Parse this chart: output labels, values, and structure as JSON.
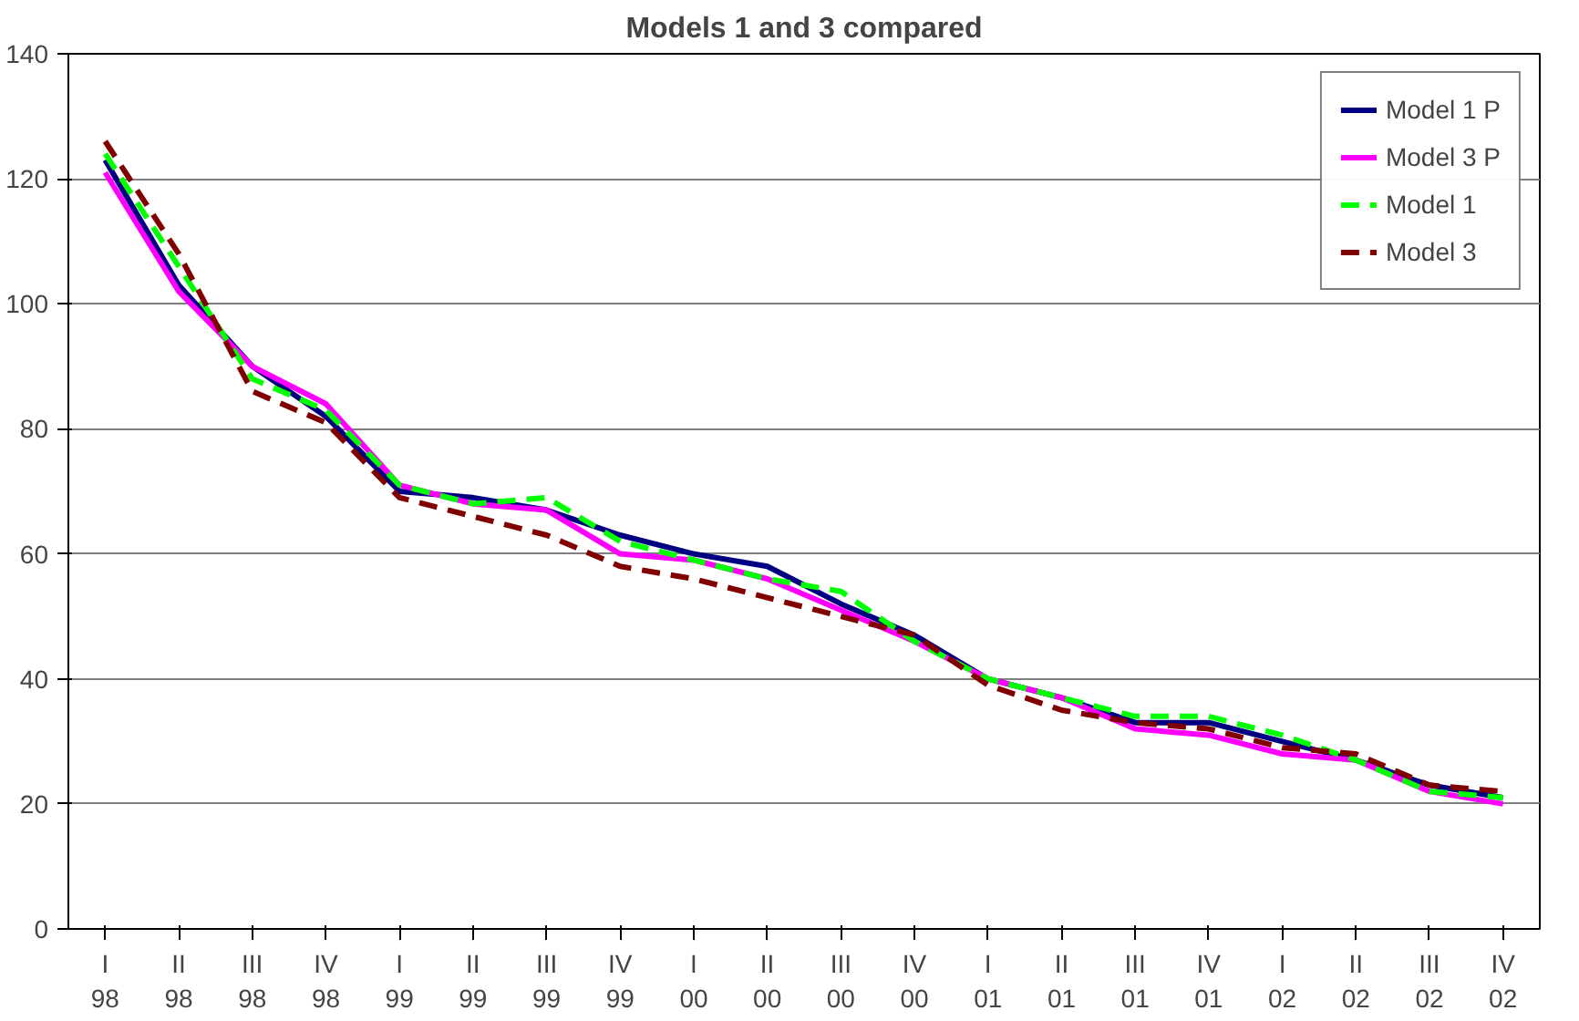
{
  "chart_data": {
    "type": "line",
    "title": "Models 1 and 3 compared",
    "categories": [
      "I\n98",
      "II\n98",
      "III\n98",
      "IV\n98",
      "I\n99",
      "II\n99",
      "III\n99",
      "IV\n99",
      "I\n00",
      "II\n00",
      "III\n00",
      "IV\n00",
      "I\n01",
      "II\n01",
      "III\n01",
      "IV\n01",
      "I\n02",
      "II\n02",
      "III\n02",
      "IV\n02"
    ],
    "series": [
      {
        "name": "Model 1 P",
        "color": "#000080",
        "line_style": "solid",
        "values": [
          123,
          103,
          90,
          82,
          70,
          69,
          67,
          63,
          60,
          58,
          52,
          47,
          40,
          37,
          33,
          33,
          30,
          27,
          23,
          21
        ]
      },
      {
        "name": "Model 3 P",
        "color": "#ff00ff",
        "line_style": "solid",
        "values": [
          121,
          102,
          90,
          84,
          71,
          68,
          67,
          60,
          59,
          56,
          51,
          46,
          40,
          37,
          32,
          31,
          28,
          27,
          22,
          20
        ]
      },
      {
        "name": "Model 1",
        "color": "#00ff00",
        "line_style": "dashed",
        "values": [
          124,
          106,
          88,
          83,
          71,
          68,
          69,
          62,
          59,
          56,
          54,
          46,
          40,
          37,
          34,
          34,
          31,
          27,
          22,
          21
        ]
      },
      {
        "name": "Model 3",
        "color": "#800000",
        "line_style": "dashed",
        "values": [
          126,
          108,
          86,
          81,
          69,
          66,
          63,
          58,
          56,
          53,
          50,
          47,
          39,
          35,
          33,
          32,
          29,
          28,
          23,
          22
        ]
      }
    ],
    "ylim": [
      0,
      140
    ],
    "yticks": [
      0,
      20,
      40,
      60,
      80,
      100,
      120,
      140
    ],
    "grid": "y",
    "legend": "top right"
  }
}
